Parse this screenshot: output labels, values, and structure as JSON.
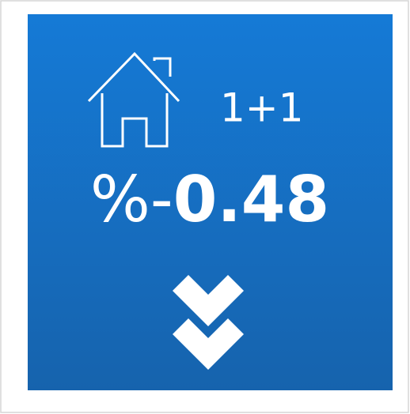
{
  "card": {
    "room": "1+1",
    "percent_sign": "%",
    "sign": "-",
    "value": "0.48"
  }
}
